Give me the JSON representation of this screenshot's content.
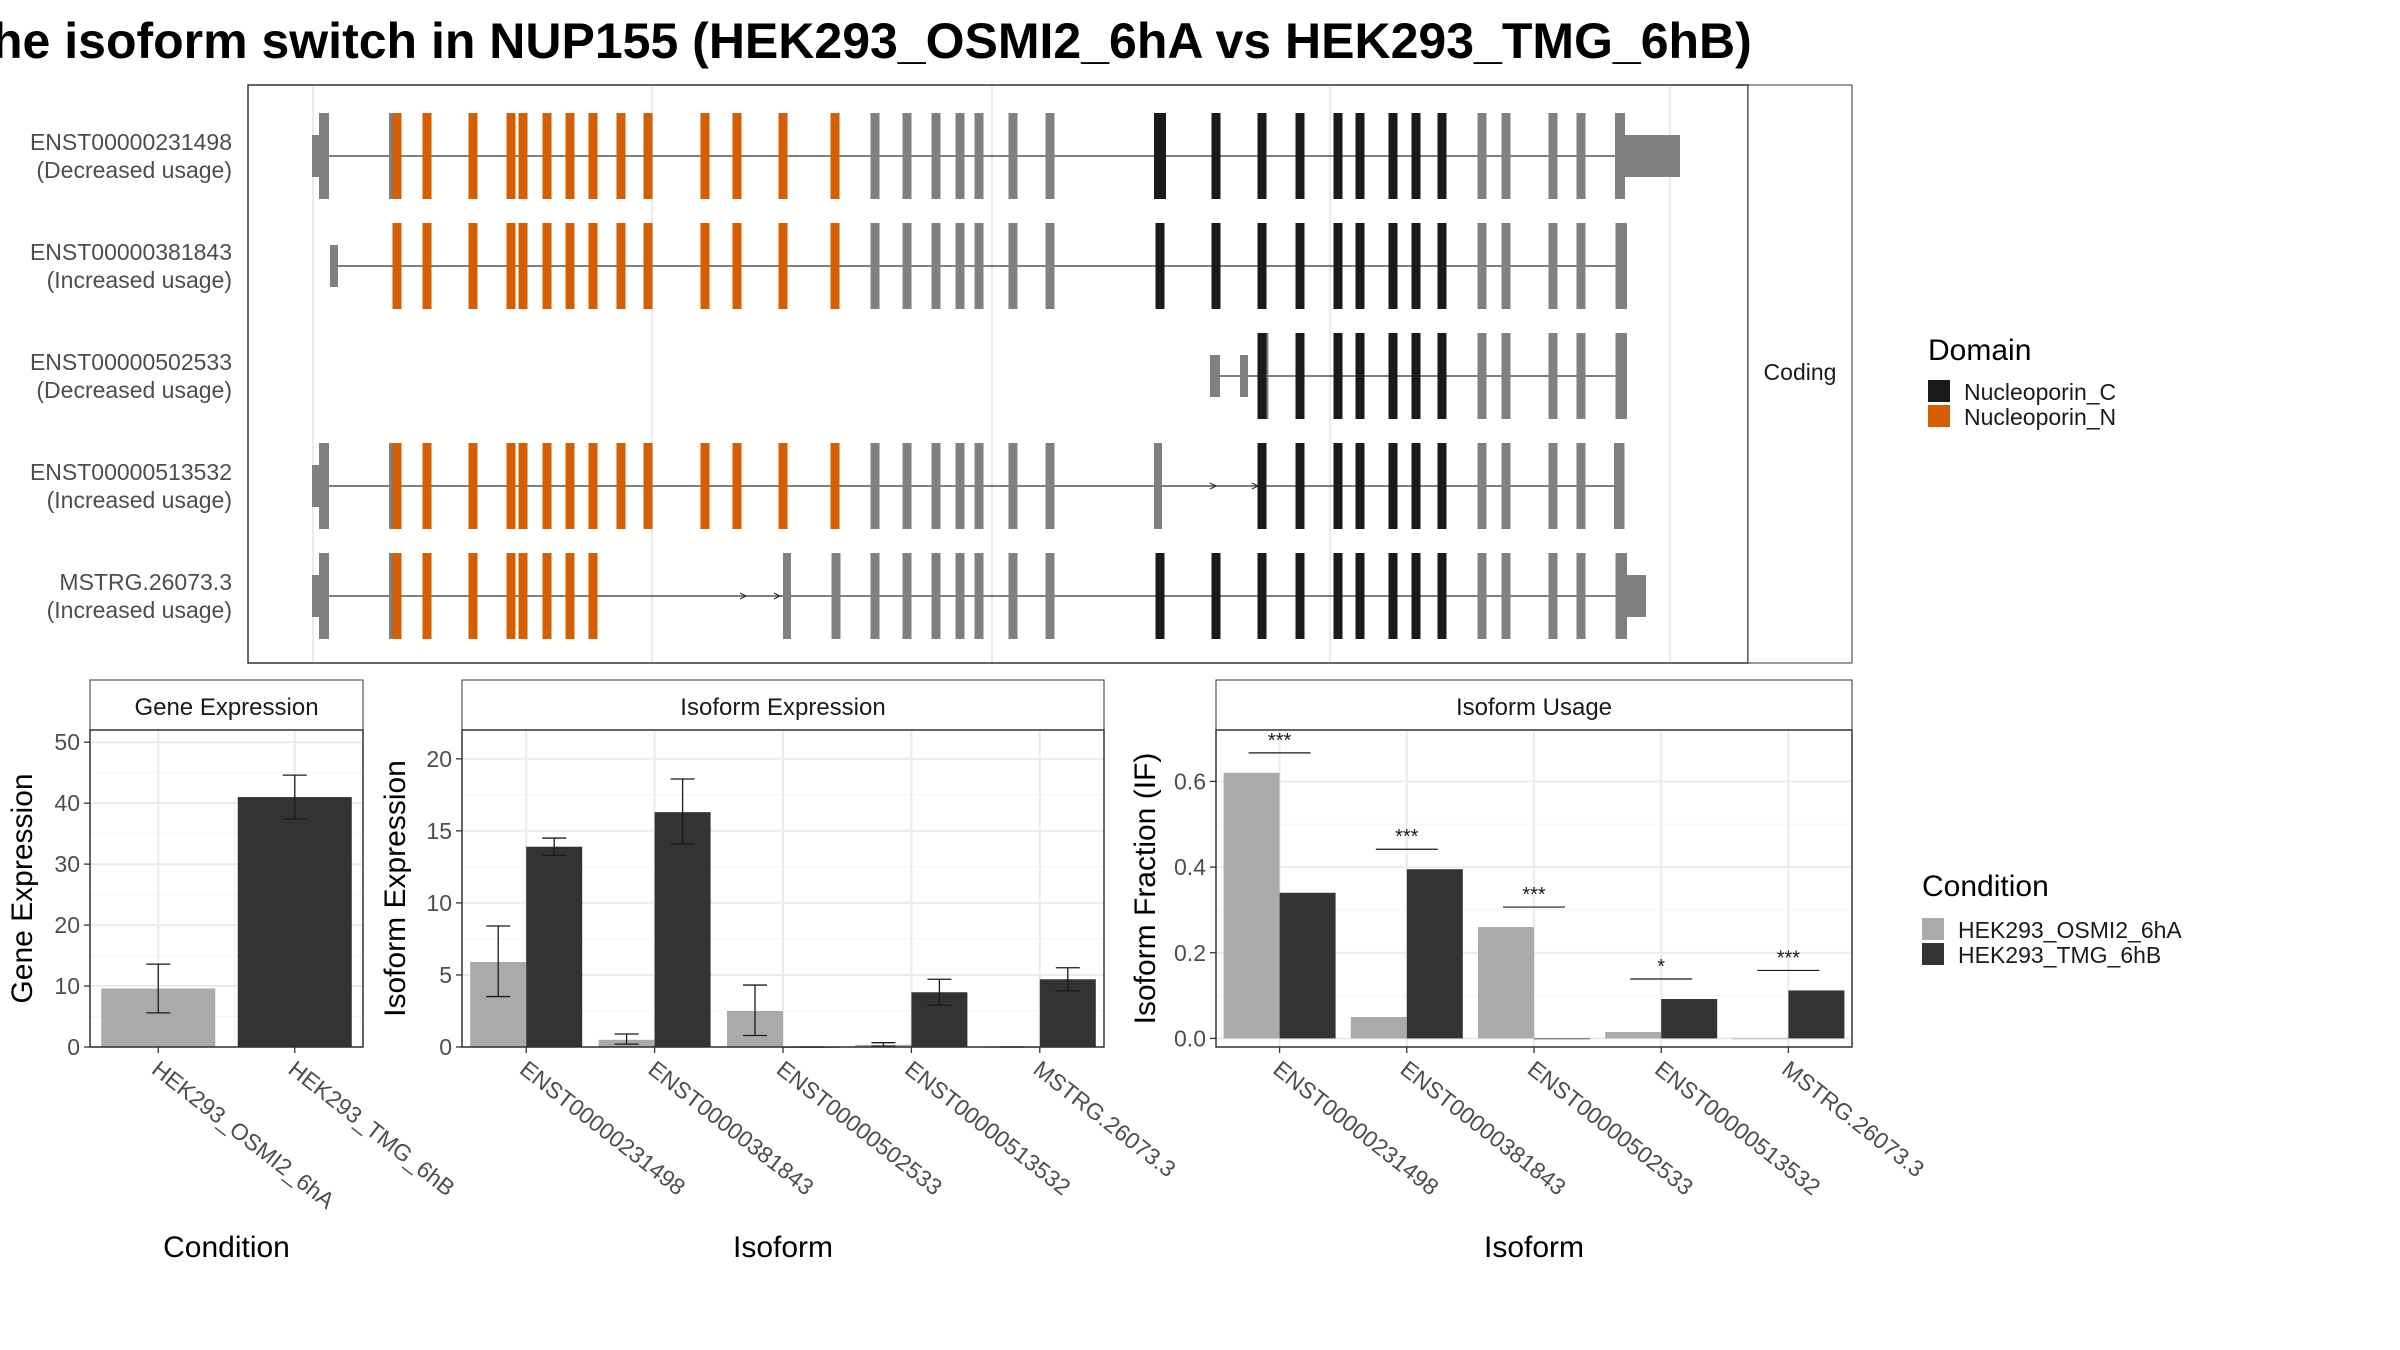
{
  "title": "he isoform switch in NUP155 (HEK293_OSMI2_6hA vs HEK293_TMG_6hB)",
  "colors": {
    "nucleoporin_c": "#1a1a1a",
    "nucleoporin_n": "#d55e00",
    "exon_grey": "#808080",
    "cond_a": "#aaaaaa",
    "cond_b": "#333333",
    "grid": "#ebebeb",
    "strip_bg": "#ffffff",
    "panel_border": "#333333"
  },
  "structure": {
    "side_label": "Coding",
    "isoforms": [
      {
        "id": "ENST00000231498",
        "usage": "(Decreased usage)"
      },
      {
        "id": "ENST00000381843",
        "usage": "(Increased usage)"
      },
      {
        "id": "ENST00000502533",
        "usage": "(Decreased usage)"
      },
      {
        "id": "ENST00000513532",
        "usage": "(Increased usage)"
      },
      {
        "id": "MSTRG.26073.3",
        "usage": "(Increased usage)"
      }
    ],
    "domain_legend": {
      "title": "Domain",
      "items": [
        {
          "label": "Nucleoporin_C",
          "color": "#1a1a1a"
        },
        {
          "label": "Nucleoporin_N",
          "color": "#d55e00"
        }
      ]
    }
  },
  "condition_legend": {
    "title": "Condition",
    "items": [
      {
        "label": "HEK293_OSMI2_6hA",
        "color": "#aaaaaa"
      },
      {
        "label": "HEK293_TMG_6hB",
        "color": "#333333"
      }
    ]
  },
  "chart_data": [
    {
      "type": "bar",
      "title": "Gene Expression",
      "xlabel": "Condition",
      "ylabel": "Gene Expression",
      "categories": [
        "HEK293_OSMI2_6hA",
        "HEK293_TMG_6hB"
      ],
      "values": [
        9.6,
        41.0
      ],
      "errors": [
        [
          5.6,
          13.6
        ],
        [
          37.4,
          44.6
        ]
      ],
      "ylim": [
        0,
        52
      ],
      "yticks": [
        0,
        10,
        20,
        30,
        40,
        50
      ]
    },
    {
      "type": "bar",
      "title": "Isoform Expression",
      "xlabel": "Isoform",
      "ylabel": "Isoform Expression",
      "categories": [
        "ENST00000231498",
        "ENST00000381843",
        "ENST00000502533",
        "ENST00000513532",
        "MSTRG.26073.3"
      ],
      "series": [
        {
          "name": "HEK293_OSMI2_6hA",
          "values": [
            5.9,
            0.5,
            2.5,
            0.15,
            0.0
          ],
          "errors": [
            [
              3.5,
              8.4
            ],
            [
              0.2,
              0.9
            ],
            [
              0.8,
              4.3
            ],
            [
              0.05,
              0.3
            ],
            [
              0.0,
              0.0
            ]
          ]
        },
        {
          "name": "HEK293_TMG_6hB",
          "values": [
            13.9,
            16.3,
            0.0,
            3.8,
            4.7
          ],
          "errors": [
            [
              13.3,
              14.5
            ],
            [
              14.1,
              18.6
            ],
            [
              0.0,
              0.0
            ],
            [
              2.9,
              4.7
            ],
            [
              3.9,
              5.5
            ]
          ]
        }
      ],
      "ylim": [
        0,
        22
      ],
      "yticks": [
        0,
        5,
        10,
        15,
        20
      ]
    },
    {
      "type": "bar",
      "title": "Isoform Usage",
      "xlabel": "Isoform",
      "ylabel": "Isoform Fraction (IF)",
      "categories": [
        "ENST00000231498",
        "ENST00000381843",
        "ENST00000502533",
        "ENST00000513532",
        "MSTRG.26073.3"
      ],
      "series": [
        {
          "name": "HEK293_OSMI2_6hA",
          "values": [
            0.62,
            0.05,
            0.26,
            0.015,
            0.0
          ]
        },
        {
          "name": "HEK293_TMG_6hB",
          "values": [
            0.34,
            0.395,
            0.0,
            0.092,
            0.112
          ]
        }
      ],
      "significance": [
        "***",
        "***",
        "***",
        "*",
        "***"
      ],
      "ylim": [
        -0.02,
        0.72
      ],
      "yticks": [
        "0.0",
        "0.2",
        "0.4",
        "0.6"
      ]
    }
  ]
}
